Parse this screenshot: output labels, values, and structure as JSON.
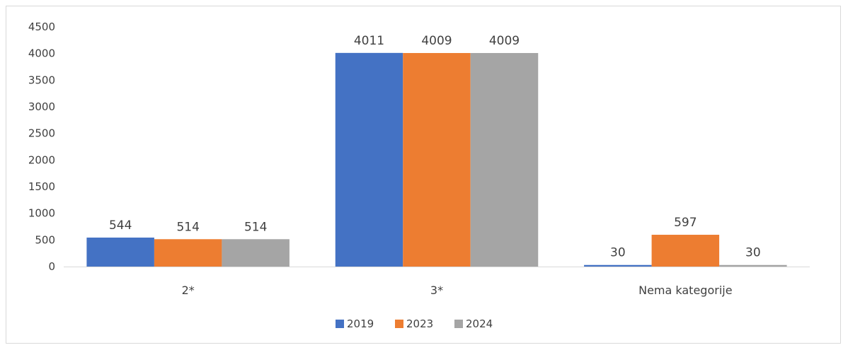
{
  "chart_data": {
    "type": "bar",
    "categories": [
      "2*",
      "3*",
      "Nema kategorije"
    ],
    "series": [
      {
        "name": "2019",
        "values": [
          544,
          4011,
          30
        ],
        "color": "#4472c4"
      },
      {
        "name": "2023",
        "values": [
          514,
          4009,
          597
        ],
        "color": "#ed7d31"
      },
      {
        "name": "2024",
        "values": [
          514,
          4009,
          30
        ],
        "color": "#a5a5a5"
      }
    ],
    "yticks": [
      "0",
      "500",
      "1000",
      "1500",
      "2000",
      "2500",
      "3000",
      "3500",
      "4000",
      "4500"
    ],
    "ylim": [
      0,
      4500
    ],
    "grid": false,
    "legend": "bottom-center"
  }
}
